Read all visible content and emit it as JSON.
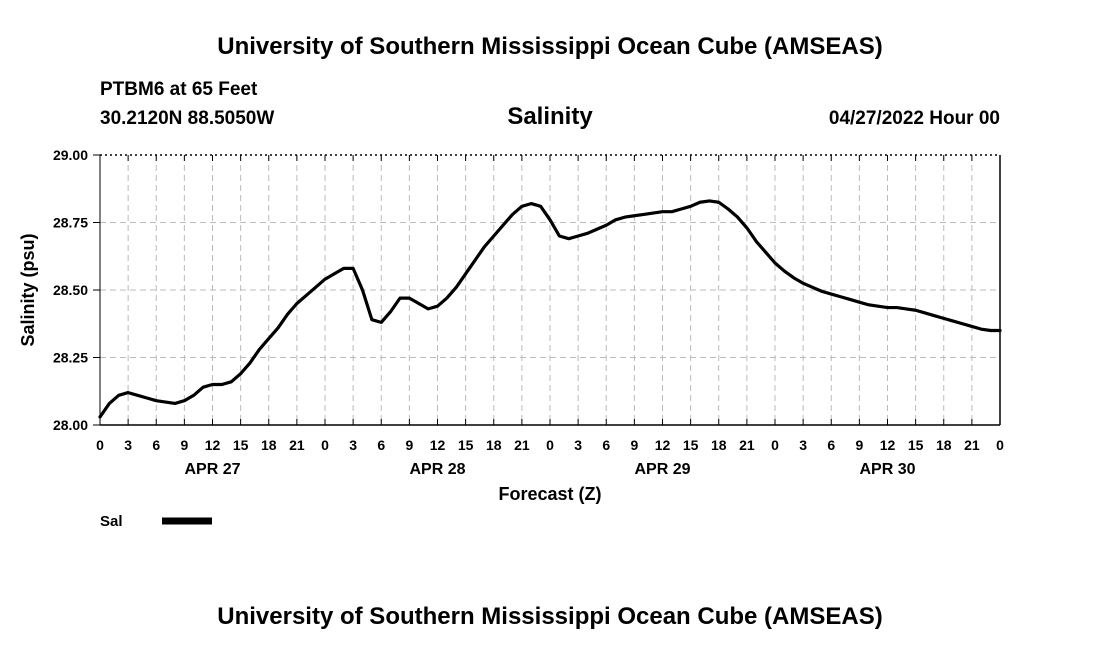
{
  "header": {
    "title_top": "University of Southern Mississippi Ocean Cube (AMSEAS)",
    "station": "PTBM6 at 65 Feet",
    "coords": "30.2120N  88.5050W",
    "date": "04/27/2022 Hour 00",
    "title_bottom": "University of Southern Mississippi Ocean Cube (AMSEAS)"
  },
  "legend": {
    "label": "Sal"
  },
  "colors": {
    "line": "#000000",
    "grid": "#bbbbbb",
    "background": "#ffffff"
  },
  "chart_data": {
    "type": "line",
    "title": "Salinity",
    "xlabel": "Forecast (Z)",
    "ylabel": "Salinity (psu)",
    "ylim": [
      28.0,
      29.0
    ],
    "xlim": [
      0,
      96
    ],
    "yticks": [
      "28.00",
      "28.25",
      "28.50",
      "28.75",
      "29.00"
    ],
    "ytick_values": [
      28.0,
      28.25,
      28.5,
      28.75,
      29.0
    ],
    "xtick_labels": [
      "0",
      "3",
      "6",
      "9",
      "12",
      "15",
      "18",
      "21",
      "0",
      "3",
      "6",
      "9",
      "12",
      "15",
      "18",
      "21",
      "0",
      "3",
      "6",
      "9",
      "12",
      "15",
      "18",
      "21",
      "0",
      "3",
      "6",
      "9",
      "12",
      "15",
      "18",
      "21",
      "0"
    ],
    "day_labels": [
      {
        "label": "APR 27",
        "hour": 12
      },
      {
        "label": "APR 28",
        "hour": 36
      },
      {
        "label": "APR 29",
        "hour": 60
      },
      {
        "label": "APR 30",
        "hour": 84
      }
    ],
    "grid": true,
    "series": [
      {
        "name": "Sal",
        "x": [
          0,
          1,
          2,
          3,
          4,
          5,
          6,
          7,
          8,
          9,
          10,
          11,
          12,
          13,
          14,
          15,
          16,
          17,
          18,
          19,
          20,
          21,
          22,
          23,
          24,
          25,
          26,
          27,
          28,
          29,
          30,
          31,
          32,
          33,
          34,
          35,
          36,
          37,
          38,
          39,
          40,
          41,
          42,
          43,
          44,
          45,
          46,
          47,
          48,
          49,
          50,
          51,
          52,
          53,
          54,
          55,
          56,
          57,
          58,
          59,
          60,
          61,
          62,
          63,
          64,
          65,
          66,
          67,
          68,
          69,
          70,
          71,
          72,
          73,
          74,
          75,
          76,
          77,
          78,
          79,
          80,
          81,
          82,
          83,
          84,
          85,
          86,
          87,
          88,
          89,
          90,
          91,
          92,
          93,
          94,
          95,
          96
        ],
        "values": [
          28.03,
          28.08,
          28.11,
          28.12,
          28.11,
          28.1,
          28.09,
          28.085,
          28.08,
          28.09,
          28.11,
          28.14,
          28.15,
          28.15,
          28.16,
          28.19,
          28.23,
          28.28,
          28.32,
          28.36,
          28.41,
          28.45,
          28.48,
          28.51,
          28.54,
          28.56,
          28.58,
          28.58,
          28.5,
          28.39,
          28.38,
          28.42,
          28.47,
          28.47,
          28.45,
          28.43,
          28.44,
          28.47,
          28.51,
          28.56,
          28.61,
          28.66,
          28.7,
          28.74,
          28.78,
          28.81,
          28.82,
          28.81,
          28.76,
          28.7,
          28.69,
          28.7,
          28.71,
          28.725,
          28.74,
          28.76,
          28.77,
          28.775,
          28.78,
          28.785,
          28.79,
          28.79,
          28.8,
          28.81,
          28.825,
          28.83,
          28.825,
          28.8,
          28.77,
          28.73,
          28.68,
          28.64,
          28.6,
          28.57,
          28.545,
          28.525,
          28.51,
          28.495,
          28.485,
          28.475,
          28.465,
          28.455,
          28.445,
          28.44,
          28.435,
          28.435,
          28.43,
          28.425,
          28.415,
          28.405,
          28.395,
          28.385,
          28.375,
          28.365,
          28.355,
          28.35,
          28.35
        ]
      }
    ]
  }
}
